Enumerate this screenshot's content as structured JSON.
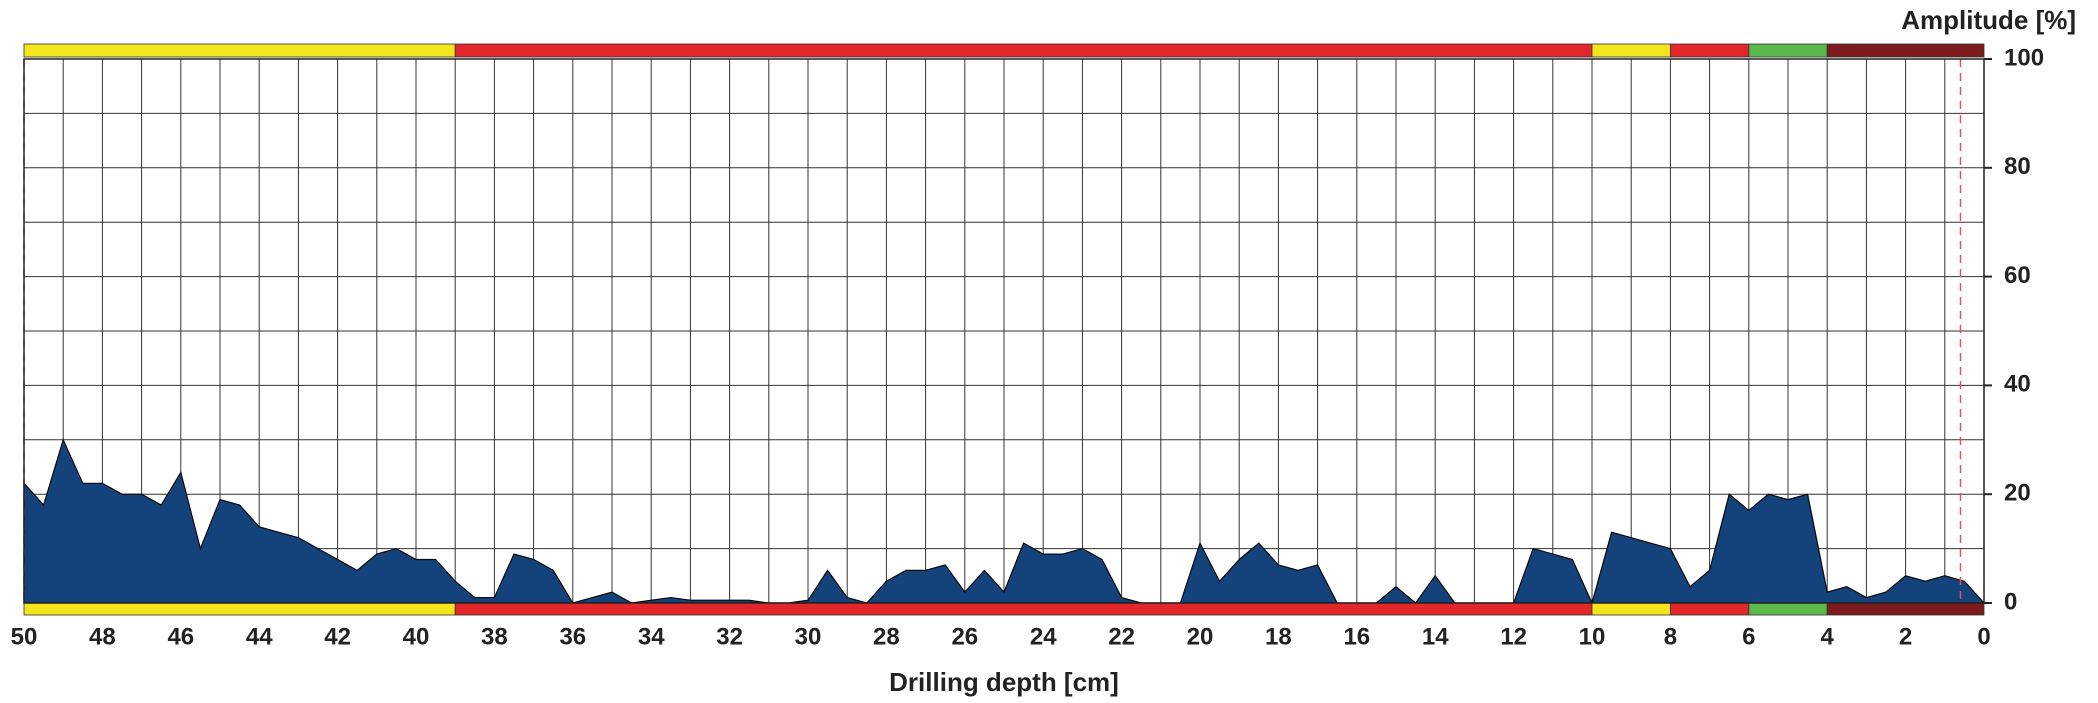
{
  "chart_data": {
    "type": "area",
    "x_label": "Drilling depth [cm]",
    "y_label": "Amplitude [%]",
    "x": [
      50,
      49.5,
      49,
      48.5,
      48,
      47.5,
      47,
      46.5,
      46,
      45.5,
      45,
      44.5,
      44,
      43.5,
      43,
      42.5,
      42,
      41.5,
      41,
      40.5,
      40,
      39.5,
      39,
      38.5,
      38,
      37.5,
      37,
      36.5,
      36,
      35.5,
      35,
      34.5,
      34,
      33.5,
      33,
      32.5,
      32,
      31.5,
      31,
      30.5,
      30,
      29.5,
      29,
      28.5,
      28,
      27.5,
      27,
      26.5,
      26,
      25.5,
      25,
      24.5,
      24,
      23.5,
      23,
      22.5,
      22,
      21.5,
      21,
      20.5,
      20,
      19.5,
      19,
      18.5,
      18,
      17.5,
      17,
      16.5,
      16,
      15.5,
      15,
      14.5,
      14,
      13.5,
      13,
      12.5,
      12,
      11.5,
      11,
      10.5,
      10,
      9.5,
      9,
      8.5,
      8,
      7.5,
      7,
      6.5,
      6,
      5.5,
      5,
      4.5,
      4,
      3.5,
      3,
      2.5,
      2,
      1.5,
      1,
      0.5,
      0
    ],
    "series": [
      {
        "name": "Amplitude",
        "color": "#14427a",
        "values": [
          22,
          18,
          30,
          22,
          22,
          20,
          20,
          18,
          24,
          10,
          19,
          18,
          14,
          13,
          12,
          10,
          8,
          6,
          9,
          10,
          8,
          8,
          4,
          1,
          1,
          9,
          8,
          6,
          0,
          1,
          2,
          0,
          0.5,
          1,
          0.5,
          0.5,
          0.5,
          0.5,
          0,
          0,
          0.5,
          6,
          1,
          0,
          4,
          6,
          6,
          7,
          2,
          6,
          2,
          11,
          9,
          9,
          10,
          8,
          1,
          0,
          0,
          0,
          11,
          4,
          8,
          11,
          7,
          6,
          7,
          0,
          0,
          0,
          3,
          0,
          5,
          0,
          0,
          0,
          0,
          10,
          9,
          8,
          0,
          13,
          12,
          11,
          10,
          3,
          6,
          20,
          17,
          20,
          19,
          20,
          2,
          3,
          1,
          2,
          5,
          4,
          5,
          4,
          0
        ]
      }
    ],
    "xlim": [
      50,
      0
    ],
    "ylim": [
      0,
      100
    ],
    "xticks": [
      50,
      48,
      46,
      44,
      42,
      40,
      38,
      36,
      34,
      32,
      30,
      28,
      26,
      24,
      22,
      20,
      18,
      16,
      14,
      12,
      10,
      8,
      6,
      4,
      2,
      0
    ],
    "yticks": [
      0,
      20,
      40,
      60,
      80,
      100
    ],
    "grid": true,
    "reference_lines": [
      50,
      0.6
    ],
    "bands": [
      {
        "from": 50,
        "to": 39,
        "color": "#f2e51c"
      },
      {
        "from": 39,
        "to": 10,
        "color": "#e3262a"
      },
      {
        "from": 10,
        "to": 8,
        "color": "#f2e51c"
      },
      {
        "from": 8,
        "to": 6,
        "color": "#e3262a"
      },
      {
        "from": 6,
        "to": 4,
        "color": "#5bb84a"
      },
      {
        "from": 4,
        "to": 0,
        "color": "#7d1a1c"
      }
    ]
  }
}
